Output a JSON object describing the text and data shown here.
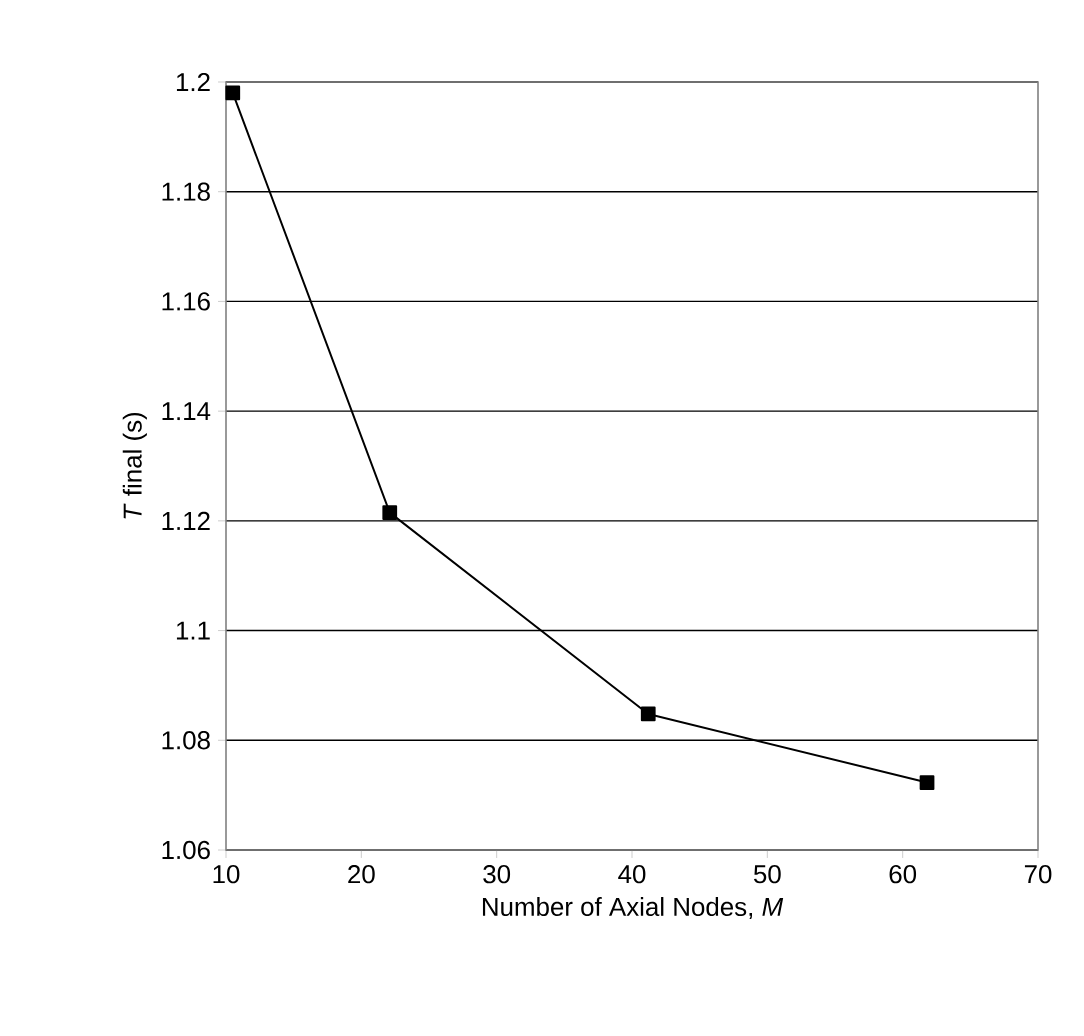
{
  "chart_data": {
    "type": "line",
    "xlabel": "Number of Axial Nodes, *M*",
    "ylabel": "*T* final (s)",
    "x": [
      10.5,
      22.1,
      41.2,
      61.8
    ],
    "series": [
      {
        "color": "#000000",
        "values": [
          1.198,
          1.1215,
          1.0848,
          1.0723
        ]
      }
    ],
    "xlim": [
      10,
      70
    ],
    "xticks": [
      10,
      20,
      30,
      40,
      50,
      60,
      70
    ],
    "ylim": [
      1.06,
      1.2
    ],
    "yticks": [
      1.06,
      1.08,
      1.1,
      1.12,
      1.14,
      1.16,
      1.18,
      1.2
    ],
    "grid": "y",
    "marker": "square",
    "line_style": "solid"
  }
}
